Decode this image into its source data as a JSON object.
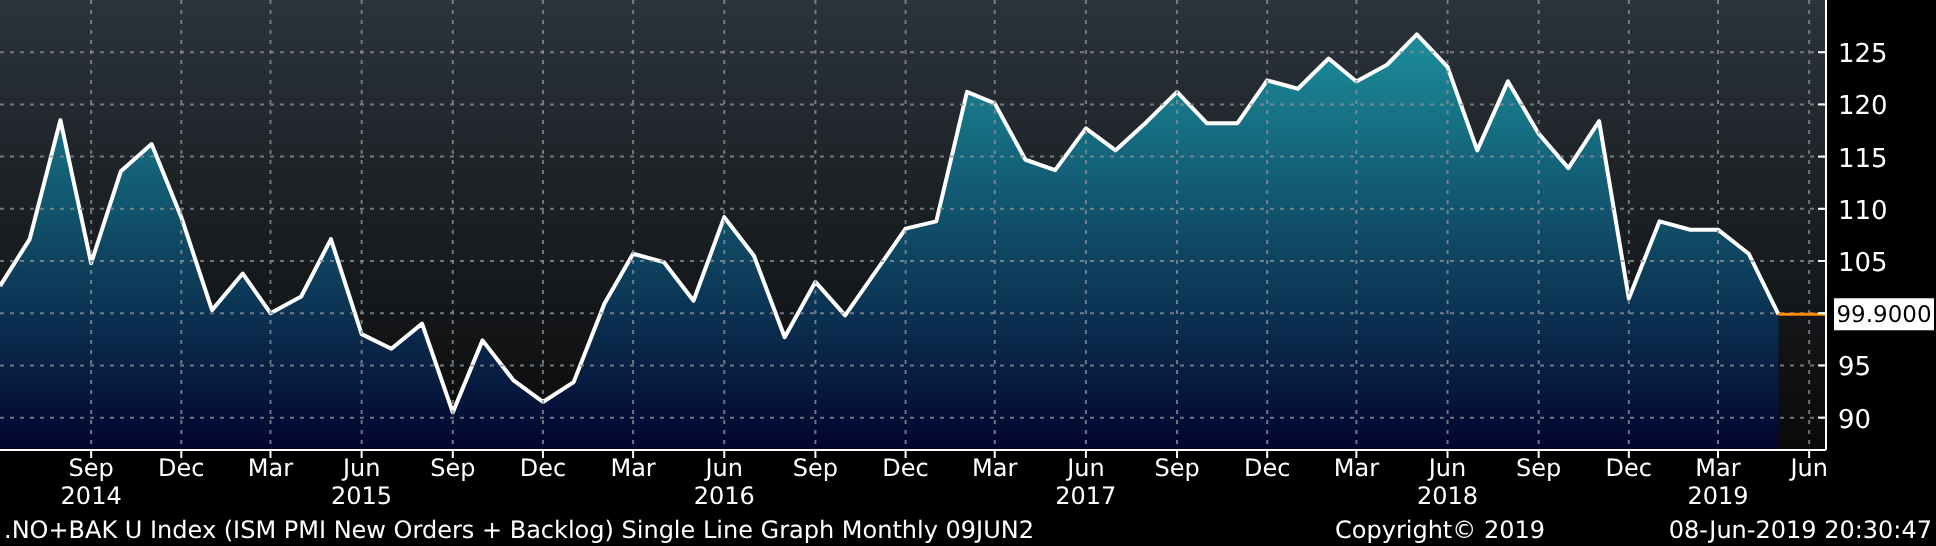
{
  "chart_data": {
    "type": "area",
    "x": [
      "2014-06",
      "2014-07",
      "2014-08",
      "2014-09",
      "2014-10",
      "2014-11",
      "2014-12",
      "2015-01",
      "2015-02",
      "2015-03",
      "2015-04",
      "2015-05",
      "2015-06",
      "2015-07",
      "2015-08",
      "2015-09",
      "2015-10",
      "2015-11",
      "2015-12",
      "2016-01",
      "2016-02",
      "2016-03",
      "2016-04",
      "2016-05",
      "2016-06",
      "2016-07",
      "2016-08",
      "2016-09",
      "2016-10",
      "2016-11",
      "2016-12",
      "2017-01",
      "2017-02",
      "2017-03",
      "2017-04",
      "2017-05",
      "2017-06",
      "2017-07",
      "2017-08",
      "2017-09",
      "2017-10",
      "2017-11",
      "2017-12",
      "2018-01",
      "2018-02",
      "2018-03",
      "2018-04",
      "2018-05",
      "2018-06",
      "2018-07",
      "2018-08",
      "2018-09",
      "2018-10",
      "2018-11",
      "2018-12",
      "2019-01",
      "2019-02",
      "2019-03",
      "2019-04",
      "2019-05"
    ],
    "series": [
      {
        "color": "#ffffff",
        "values": [
          102.6,
          107.1,
          118.5,
          104.8,
          113.6,
          116.2,
          109.2,
          100.3,
          103.8,
          100.0,
          101.6,
          107.1,
          98.0,
          96.6,
          99.0,
          90.5,
          97.4,
          93.6,
          91.5,
          93.4,
          100.9,
          105.7,
          104.9,
          101.2,
          109.2,
          105.5,
          97.7,
          103.0,
          99.8,
          104.0,
          108.1,
          108.8,
          121.2,
          120.1,
          114.7,
          113.7,
          117.7,
          115.6,
          118.3,
          121.2,
          118.2,
          118.2,
          122.3,
          121.5,
          124.4,
          122.2,
          123.8,
          126.7,
          123.6,
          115.6,
          122.2,
          117.2,
          113.9,
          118.4,
          101.4,
          108.8,
          108.0,
          108.0,
          105.7,
          99.9
        ]
      }
    ],
    "xlim": [
      "2014-06-01",
      "2019-06-18"
    ],
    "xticks": [
      {
        "value": "2014-09",
        "label": "Sep\n2014"
      },
      {
        "value": "2014-12",
        "label": "Dec"
      },
      {
        "value": "2015-03",
        "label": "Mar"
      },
      {
        "value": "2015-06",
        "label": "Jun\n2015"
      },
      {
        "value": "2015-09",
        "label": "Sep"
      },
      {
        "value": "2015-12",
        "label": "Dec"
      },
      {
        "value": "2016-03",
        "label": "Mar"
      },
      {
        "value": "2016-06",
        "label": "Jun\n2016"
      },
      {
        "value": "2016-09",
        "label": "Sep"
      },
      {
        "value": "2016-12",
        "label": "Dec"
      },
      {
        "value": "2017-03",
        "label": "Mar"
      },
      {
        "value": "2017-06",
        "label": "Jun\n2017"
      },
      {
        "value": "2017-09",
        "label": "Sep"
      },
      {
        "value": "2017-12",
        "label": "Dec"
      },
      {
        "value": "2018-03",
        "label": "Mar"
      },
      {
        "value": "2018-06",
        "label": "Jun\n2018"
      },
      {
        "value": "2018-09",
        "label": "Sep"
      },
      {
        "value": "2018-12",
        "label": "Dec"
      },
      {
        "value": "2019-03",
        "label": "Mar\n2019"
      },
      {
        "value": "2019-06",
        "label": "Jun"
      }
    ],
    "ylim": [
      86.9,
      130
    ],
    "yticks": [
      90,
      95,
      {
        "value": 100,
        "label": null
      },
      105,
      110,
      115,
      120,
      125
    ],
    "grid": true,
    "ref_lines": [
      {
        "axis": "y",
        "value": 99.9,
        "label": "99.9000",
        "color": "#ff8c00"
      }
    ],
    "annotations": [
      ".NO+BAK U Index (ISM PMI New Orders + Backlog) Single Line Graph  Monthly 09JUN2",
      "Copyright© 2019",
      "08-Jun-2019 20:30:47"
    ]
  }
}
